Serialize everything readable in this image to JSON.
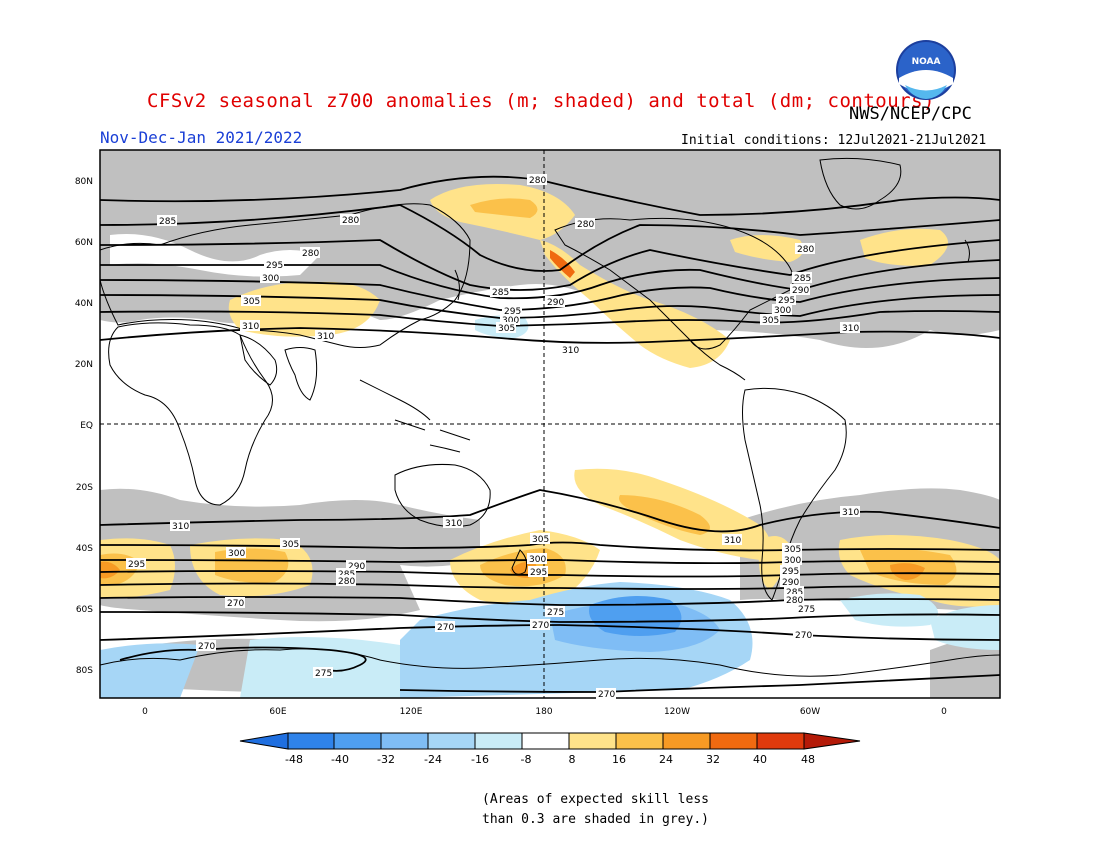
{
  "header": {
    "title": "CFSv2 seasonal z700 anomalies (m; shaded) and total (dm; contours)",
    "org": "NWS/NCEP/CPC",
    "period": "Nov-Dec-Jan 2021/2022",
    "initial_conditions": "Initial conditions: 12Jul2021-21Jul2021"
  },
  "logo": {
    "text": "NOAA"
  },
  "map": {
    "lat_labels": [
      "80N",
      "60N",
      "40N",
      "20N",
      "EQ",
      "20S",
      "40S",
      "60S",
      "80S"
    ],
    "lon_labels": [
      "0",
      "60E",
      "120E",
      "180",
      "120W",
      "60W",
      "0"
    ],
    "contour_levels": [
      "270",
      "275",
      "280",
      "285",
      "290",
      "295",
      "300",
      "305",
      "310"
    ],
    "colors": {
      "land_outline": "#000000",
      "skill_mask": "#c0c0c0",
      "grid_dash": "#000000"
    }
  },
  "colorbar": {
    "labels": [
      "-48",
      "-40",
      "-32",
      "-24",
      "-16",
      "-8",
      "8",
      "16",
      "24",
      "32",
      "40",
      "48"
    ],
    "colors": [
      "#1f6fe0",
      "#2f83ea",
      "#4f9ff0",
      "#7fbdf5",
      "#a6d6f6",
      "#c9ecf7",
      "#ffffff",
      "#ffe38a",
      "#fbc14a",
      "#f79a24",
      "#f06a10",
      "#e03a0c",
      "#b41a08"
    ]
  },
  "notes": {
    "line1": "(Areas of expected skill less",
    "line2": "than 0.3 are shaded in grey.)"
  }
}
